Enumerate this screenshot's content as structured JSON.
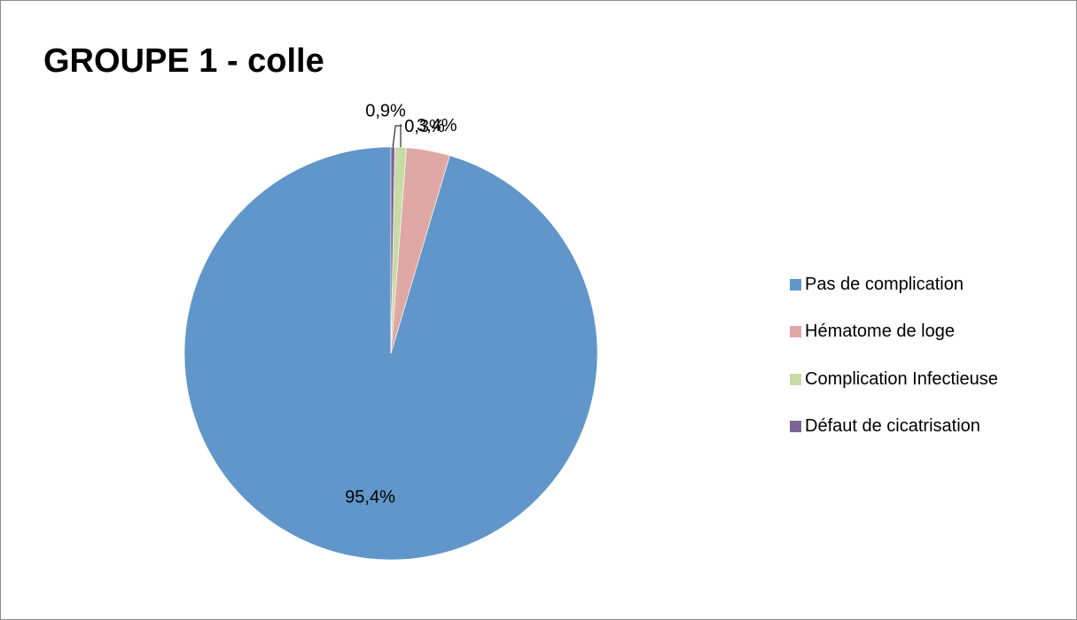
{
  "chart_data": {
    "type": "pie",
    "title": "GROUPE 1 - colle",
    "legend_position": "right",
    "slices": [
      {
        "label": "Pas de complication",
        "value": 95.4,
        "value_label": "95,4%",
        "color": "#6096c9"
      },
      {
        "label": "Hématome de loge",
        "value": 3.4,
        "value_label": "3,4%",
        "color": "#e0a8a5"
      },
      {
        "label": "Complication Infectieuse",
        "value": 0.9,
        "value_label": "0,9%",
        "color": "#c7dba5"
      },
      {
        "label": "Défaut de cicatrisation",
        "value": 0.3,
        "value_label": "0,3%",
        "color": "#7c6597"
      }
    ]
  }
}
